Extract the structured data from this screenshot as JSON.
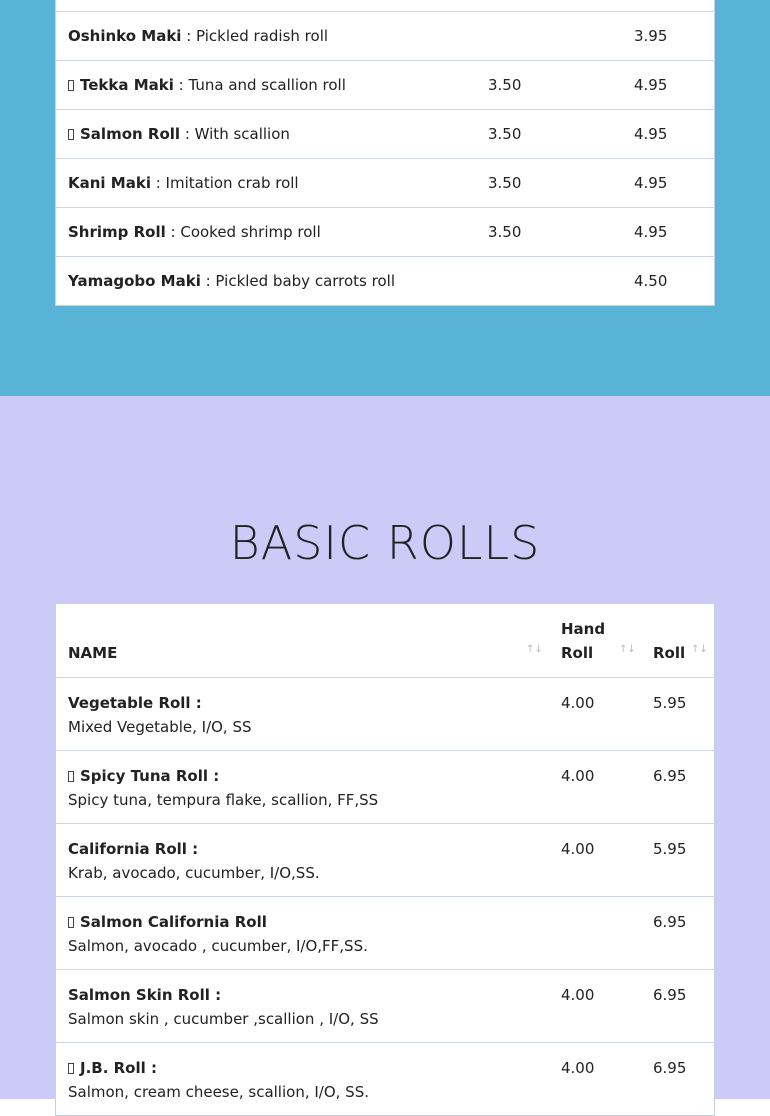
{
  "colors": {
    "top_bg": "#58b3d6",
    "bottom_bg": "#cccbf8"
  },
  "maki_rows": [
    {
      "icon": false,
      "name": "Oshinko Maki",
      "desc": " : Pickled radish roll",
      "hand": "",
      "roll": "3.95"
    },
    {
      "icon": true,
      "name": "Tekka Maki",
      "desc": " : Tuna and scallion roll",
      "hand": "3.50",
      "roll": "4.95"
    },
    {
      "icon": true,
      "name": "Salmon Roll",
      "desc": " : With scallion",
      "hand": "3.50",
      "roll": "4.95"
    },
    {
      "icon": false,
      "name": "Kani Maki",
      "desc": " : Imitation crab roll",
      "hand": "3.50",
      "roll": "4.95"
    },
    {
      "icon": false,
      "name": "Shrimp Roll",
      "desc": " : Cooked shrimp roll",
      "hand": "3.50",
      "roll": "4.95"
    },
    {
      "icon": false,
      "name": "Yamagobo Maki",
      "desc": " : Pickled baby carrots roll",
      "hand": "",
      "roll": "4.50"
    }
  ],
  "basic": {
    "title": "BASIC ROLLS",
    "headers": {
      "name": "NAME",
      "hand1": "Hand",
      "hand2": "Roll",
      "roll": "Roll",
      "sort": "↑↓"
    },
    "rows": [
      {
        "icon": false,
        "name": "Vegetable Roll :",
        "desc": "Mixed Vegetable, I/O, SS",
        "hand": "4.00",
        "roll": "5.95"
      },
      {
        "icon": true,
        "name": "Spicy Tuna Roll :",
        "desc": "Spicy tuna, tempura flake, scallion, FF,SS",
        "hand": "4.00",
        "roll": "6.95"
      },
      {
        "icon": false,
        "name": "California Roll :",
        "desc": "Krab, avocado, cucumber, I/O,SS.",
        "hand": "4.00",
        "roll": "5.95"
      },
      {
        "icon": true,
        "name": "Salmon California Roll",
        "desc": "Salmon, avocado , cucumber, I/O,FF,SS.",
        "hand": "",
        "roll": "6.95"
      },
      {
        "icon": false,
        "name": "Salmon Skin Roll :",
        "desc": "Salmon skin , cucumber ,scallion , I/O, SS",
        "hand": "4.00",
        "roll": "6.95"
      },
      {
        "icon": true,
        "name": "J.B. Roll :",
        "desc": "Salmon, cream cheese, scallion, I/O, SS.",
        "hand": "4.00",
        "roll": "6.95"
      }
    ]
  }
}
